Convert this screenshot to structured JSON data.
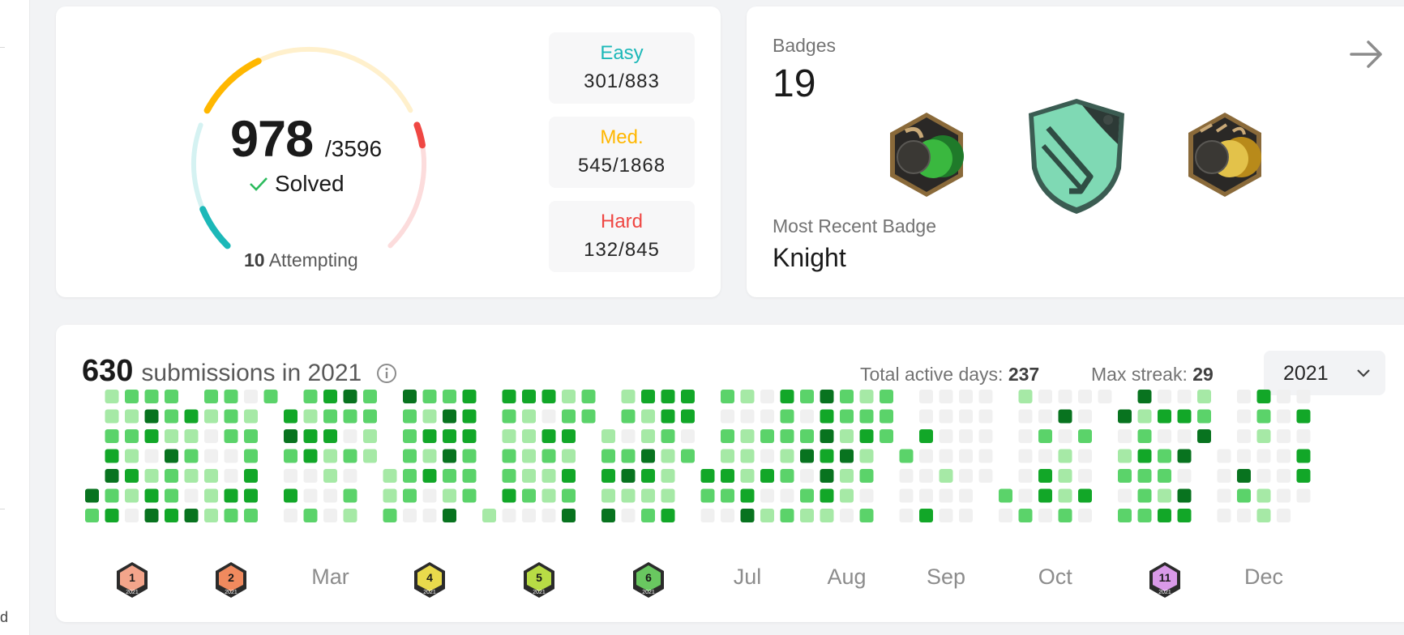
{
  "sidebar_fragment": {
    "text": "d"
  },
  "solved": {
    "solved_count": "978",
    "total": "/3596",
    "solved_label": "Solved",
    "attempting_count": "10",
    "attempting_label": "Attempting",
    "gauge_fractions": {
      "easy": 0.34,
      "medium": 0.29,
      "hard": 0.16
    },
    "colors": {
      "easy": "#1cb8b8",
      "easy_track": "#d5f2f2",
      "medium": "#ffb700",
      "medium_track": "#fff0cc",
      "hard": "#ef4743",
      "hard_track": "#fcdcdc",
      "check": "#2cbb5d"
    },
    "difficulties": [
      {
        "label": "Easy",
        "value": "301/883"
      },
      {
        "label": "Med.",
        "value": "545/1868"
      },
      {
        "label": "Hard",
        "value": "132/845"
      }
    ]
  },
  "badges": {
    "title": "Badges",
    "count": "19",
    "icons": [
      "50-days-badge-icon",
      "knight-badge-icon",
      "365-days-badge-icon"
    ],
    "recent_title": "Most Recent Badge",
    "recent_name": "Knight"
  },
  "calendar": {
    "submission_count": "630",
    "submission_text": "submissions in 2021",
    "active_days_label": "Total active days:",
    "active_days": "237",
    "max_streak_label": "Max streak:",
    "max_streak": "29",
    "year": "2021",
    "palette": [
      "#f0f0f0",
      "#a6e9a6",
      "#5bd36a",
      "#12a728",
      "#08731f"
    ],
    "months": [
      {
        "label": "Jan",
        "badge": "1",
        "badge_color": "#f3a58b",
        "start_col": 0,
        "weeks": 5,
        "lead_days": 5,
        "last_day": 31,
        "seed": 11
      },
      {
        "label": "Feb",
        "badge": "2",
        "badge_color": "#f08a5e",
        "start_col": 5,
        "weeks": 5,
        "lead_days": 1,
        "last_day": 28,
        "seed": 23
      },
      {
        "label": "Mar",
        "badge": "",
        "badge_color": "",
        "start_col": 10,
        "weeks": 5,
        "lead_days": 1,
        "last_day": 31,
        "seed": 37
      },
      {
        "label": "Apr",
        "badge": "4",
        "badge_color": "#e9da4c",
        "start_col": 15,
        "weeks": 5,
        "lead_days": 4,
        "last_day": 30,
        "seed": 41
      },
      {
        "label": "May",
        "badge": "5",
        "badge_color": "#b8dc45",
        "start_col": 20,
        "weeks": 6,
        "lead_days": 6,
        "last_day": 31,
        "seed": 53
      },
      {
        "label": "Jun",
        "badge": "6",
        "badge_color": "#69c760",
        "start_col": 26,
        "weeks": 5,
        "lead_days": 2,
        "last_day": 30,
        "seed": 67
      },
      {
        "label": "Jul",
        "badge": "",
        "badge_color": "",
        "start_col": 31,
        "weeks": 5,
        "lead_days": 4,
        "last_day": 31,
        "seed": 71
      },
      {
        "label": "Aug",
        "badge": "",
        "badge_color": "",
        "start_col": 36,
        "weeks": 5,
        "lead_days": 0,
        "last_day": 31,
        "seed": 83
      },
      {
        "label": "Sep",
        "badge": "",
        "badge_color": "",
        "start_col": 41,
        "weeks": 5,
        "lead_days": 3,
        "last_day": 30,
        "seed": 97
      },
      {
        "label": "Oct",
        "badge": "",
        "badge_color": "",
        "start_col": 46,
        "weeks": 6,
        "lead_days": 5,
        "last_day": 31,
        "seed": 103
      },
      {
        "label": "Nov",
        "badge": "11",
        "badge_color": "#d99ae8",
        "start_col": 52,
        "weeks": 5,
        "lead_days": 1,
        "last_day": 30,
        "seed": 113
      },
      {
        "label": "Dec",
        "badge": "",
        "badge_color": "",
        "start_col": 57,
        "weeks": 5,
        "lead_days": 3,
        "last_day": 31,
        "seed": 127
      }
    ],
    "activity_levels": [
      0.1,
      0.25,
      0.27,
      0.22,
      0.16
    ],
    "month_activity": [
      0.95,
      0.75,
      0.8,
      0.85,
      0.85,
      0.9,
      0.7,
      0.8,
      0.05,
      0.4,
      0.85,
      0.3
    ]
  }
}
